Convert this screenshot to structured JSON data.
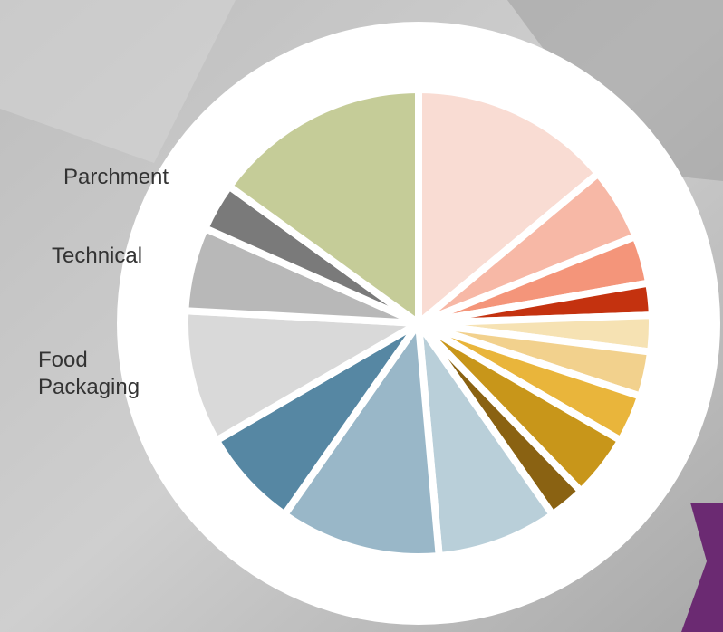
{
  "chart_data": {
    "type": "pie",
    "categories": [
      null,
      null,
      null,
      null,
      null,
      null,
      null,
      null,
      null,
      null,
      null,
      null,
      "Food Packaging",
      "Technical",
      "Parchment",
      null
    ],
    "values": [
      13.9,
      5,
      3.3,
      2.2,
      2.5,
      3.1,
      3.3,
      4.4,
      2.5,
      8.3,
      11.1,
      6.9,
      9.2,
      5.8,
      3.3,
      15
    ],
    "colors": [
      "#f9dcd3",
      "#f7b8a6",
      "#f4957a",
      "#c4320f",
      "#f6e2b3",
      "#f2d18d",
      "#e9b53b",
      "#c8961a",
      "#8a6212",
      "#b9cfd9",
      "#99b7c8",
      "#5687a3",
      "#d9d9d9",
      "#b8b8b8",
      "#7a7a7a",
      "#c5cc98"
    ]
  }
}
